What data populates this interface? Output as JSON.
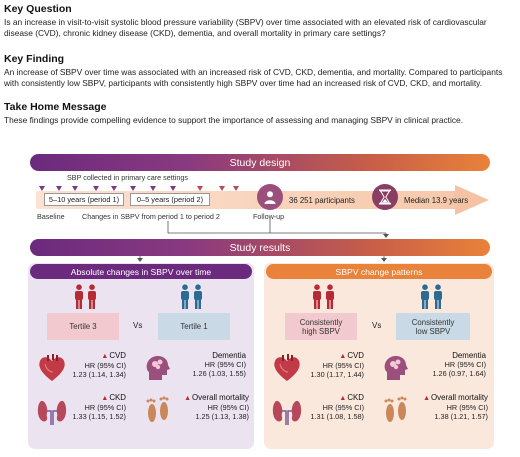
{
  "key_question": {
    "title": "Key Question",
    "text": "Is an increase in visit-to-visit systolic blood pressure variability (SBPV) over time associated with an elevated risk of cardiovascular disease (CVD), chronic kidney disease (CKD), dementia, and overall mortality in primary care settings?"
  },
  "key_finding": {
    "title": "Key Finding",
    "text": "An increase of SBPV over time was associated with an increased risk of CVD, CKD, dementia, and mortality. Compared to participants with consistently low SBPV, participants with consistently high SBPV over time had an increased risk of CVD, CKD, and mortality."
  },
  "take_home": {
    "title": "Take Home Message",
    "text": "These findings provide compelling evidence to support the importance of assessing and managing SBPV in clinical practice."
  },
  "study_design": {
    "title": "Study design",
    "sbp_label": "SBP collected in primary care settings",
    "period1": "5–10 years (period 1)",
    "period2": "0–5 years (period 2)",
    "baseline": "Baseline",
    "changes": "Changes in SBPV from period 1 to period 2",
    "followup": "Follow-up",
    "participants": "36 251 participants",
    "median": "Median 13.9 years"
  },
  "study_results": {
    "title": "Study results",
    "left": {
      "title": "Absolute changes in SBPV over time",
      "group_a": "Tertile 3",
      "vs": "Vs",
      "group_b": "Tertile 1",
      "cvd": {
        "label": "CVD",
        "hr": "HR (95% CI)",
        "value": "1.23 (1.14, 1.34)"
      },
      "dementia": {
        "label": "Dementia",
        "hr": "HR (95% CI)",
        "value": "1.26 (1.03, 1.55)"
      },
      "ckd": {
        "label": "CKD",
        "hr": "HR (95% CI)",
        "value": "1.33 (1.15, 1.52)"
      },
      "mortality": {
        "label": "Overall mortality",
        "hr": "HR (95% CI)",
        "value": "1.25 (1.13, 1.38)"
      }
    },
    "right": {
      "title": "SBPV change patterns",
      "group_a_line1": "Consistently",
      "group_a_line2": "high SBPV",
      "vs": "Vs",
      "group_b_line1": "Consistently",
      "group_b_line2": "low SBPV",
      "cvd": {
        "label": "CVD",
        "hr": "HR (95% CI)",
        "value": "1.30 (1.17, 1.44)"
      },
      "dementia": {
        "label": "Dementia",
        "hr": "HR (95% CI)",
        "value": "1.26 (0.97, 1.64)"
      },
      "ckd": {
        "label": "CKD",
        "hr": "HR (95% CI)",
        "value": "1.31 (1.08, 1.58)"
      },
      "mortality": {
        "label": "Overall mortality",
        "hr": "HR (95% CI)",
        "value": "1.38 (1.21, 1.57)"
      }
    }
  },
  "colors": {
    "purple": "#6b2a7d",
    "orange": "#e9823a",
    "red_person": "#b52a35",
    "blue_person": "#2a6a93",
    "left_panel_bg": "#ece3f0",
    "right_panel_bg": "#fbe8dc"
  }
}
